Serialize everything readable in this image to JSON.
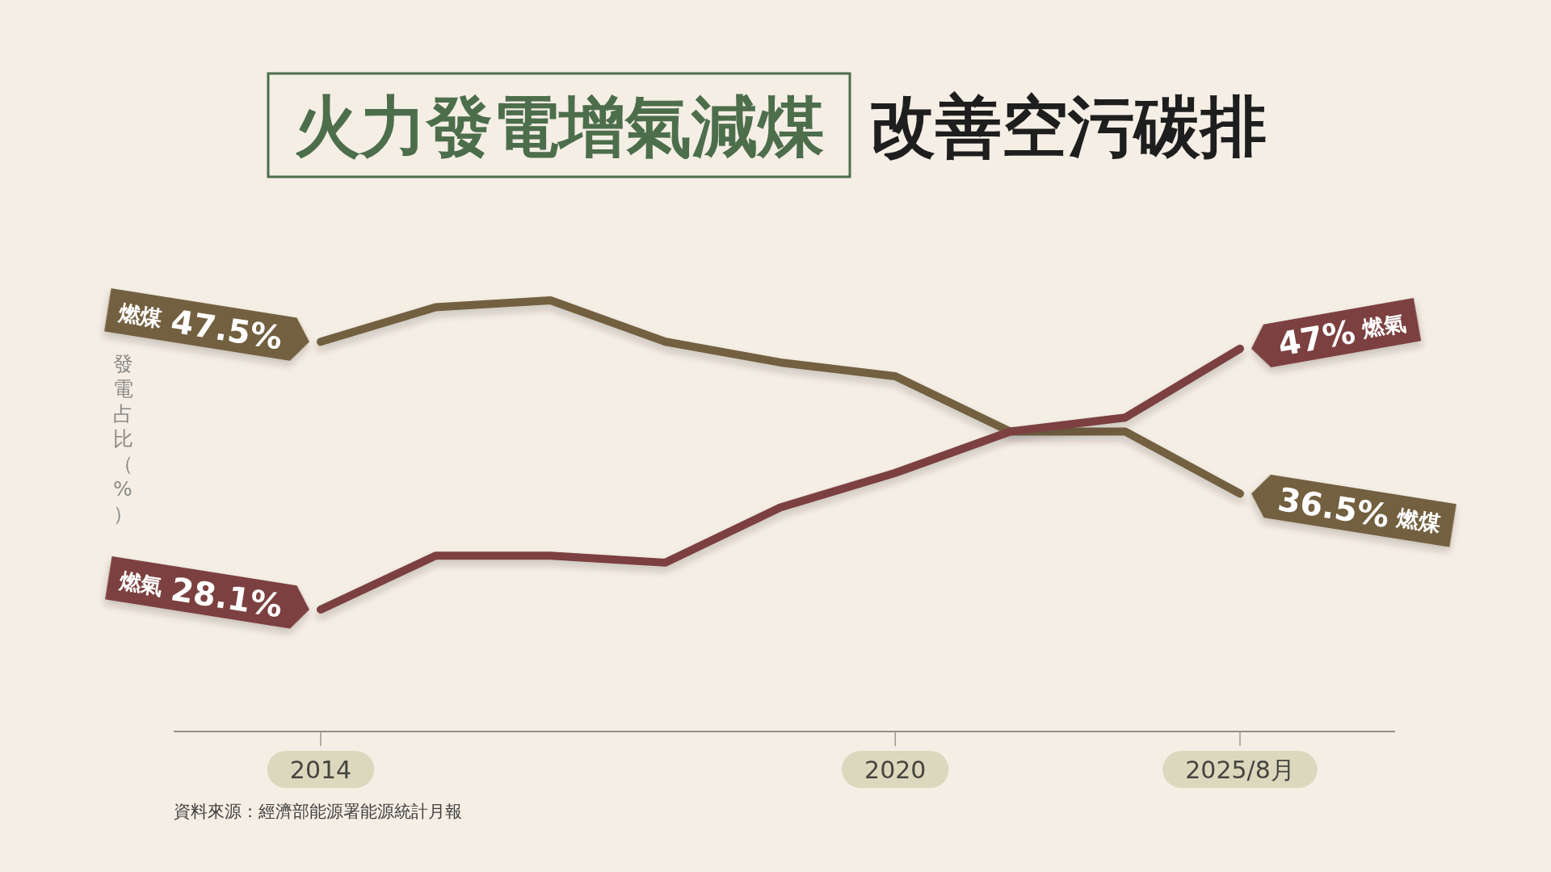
{
  "chart_data": {
    "type": "line",
    "title": "火力發電增氣減煤",
    "subtitle": "改善空污碳排",
    "categories": [
      "2014",
      null,
      null,
      null,
      null,
      "2020",
      null,
      null,
      "2025/8月"
    ],
    "series": [
      {
        "name": "燃煤",
        "color": "#73603f",
        "values": [
          47.5,
          50,
          50.5,
          47.5,
          46,
          45,
          41,
          41,
          36.5
        ],
        "value_labels": [
          "47.5%",
          null,
          null,
          null,
          null,
          null,
          null,
          null,
          "36.5%"
        ]
      },
      {
        "name": "燃氣",
        "color": "#7b3f41",
        "values": [
          28.1,
          32,
          32,
          31.5,
          35.5,
          38,
          41,
          42,
          47
        ],
        "value_labels": [
          "28.1%",
          null,
          null,
          null,
          null,
          null,
          null,
          null,
          "47%"
        ]
      }
    ],
    "tick_labels": "x",
    "annotations": [
      "發電占比（%）",
      "資料來源：經濟部能源署能源統計月報"
    ]
  }
}
